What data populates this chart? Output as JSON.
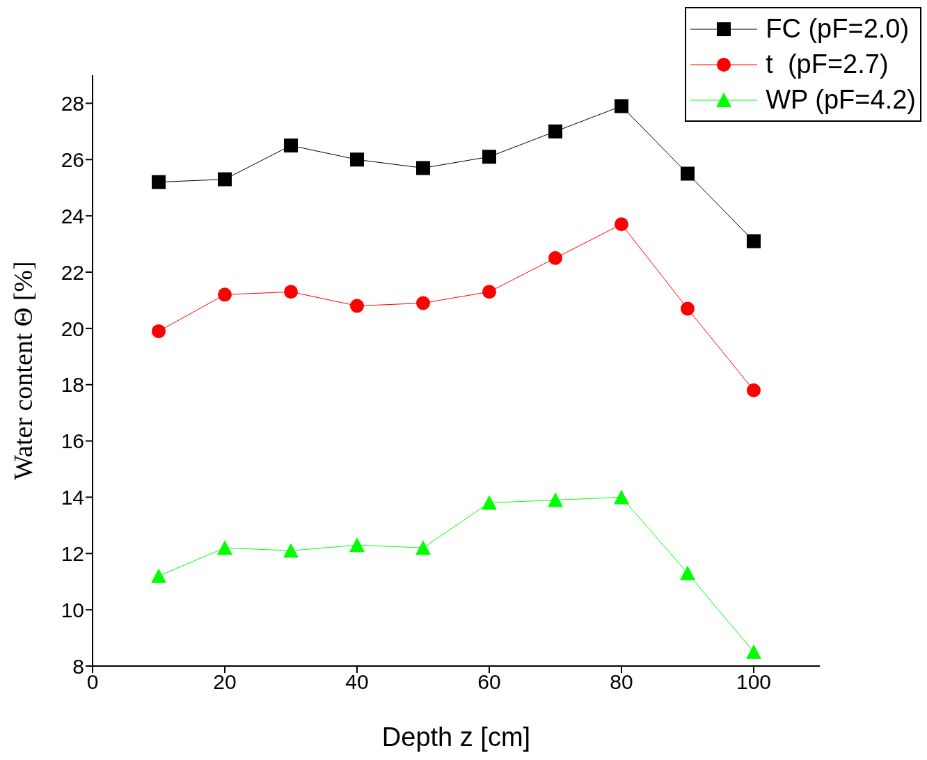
{
  "chart_data": {
    "type": "line",
    "xlabel": "Depth z [cm]",
    "ylabel": "Water content Θ [%]",
    "x": [
      10,
      20,
      30,
      40,
      50,
      60,
      70,
      80,
      90,
      100
    ],
    "series": [
      {
        "name": "FC (pF=2.0)",
        "color": "#000000",
        "marker": "square",
        "values": [
          25.2,
          25.3,
          26.5,
          26.0,
          25.7,
          26.1,
          27.0,
          27.9,
          25.5,
          23.1
        ]
      },
      {
        "name": "t  (pF=2.7)",
        "color": "#ff0000",
        "marker": "circle",
        "values": [
          19.9,
          21.2,
          21.3,
          20.8,
          20.9,
          21.3,
          22.5,
          23.7,
          20.7,
          17.8
        ]
      },
      {
        "name": "WP (pF=4.2)",
        "color": "#00ff00",
        "marker": "triangle",
        "values": [
          11.2,
          12.2,
          12.1,
          12.3,
          12.2,
          13.8,
          13.9,
          14.0,
          11.3,
          8.5
        ]
      }
    ],
    "xlim": [
      0,
      110
    ],
    "xticks": [
      0,
      20,
      40,
      60,
      80,
      100
    ],
    "ylim": [
      8,
      29
    ],
    "yticks": [
      8,
      10,
      12,
      14,
      16,
      18,
      20,
      22,
      24,
      26,
      28
    ],
    "grid": false,
    "legend": "top right",
    "line_style": "solid"
  }
}
